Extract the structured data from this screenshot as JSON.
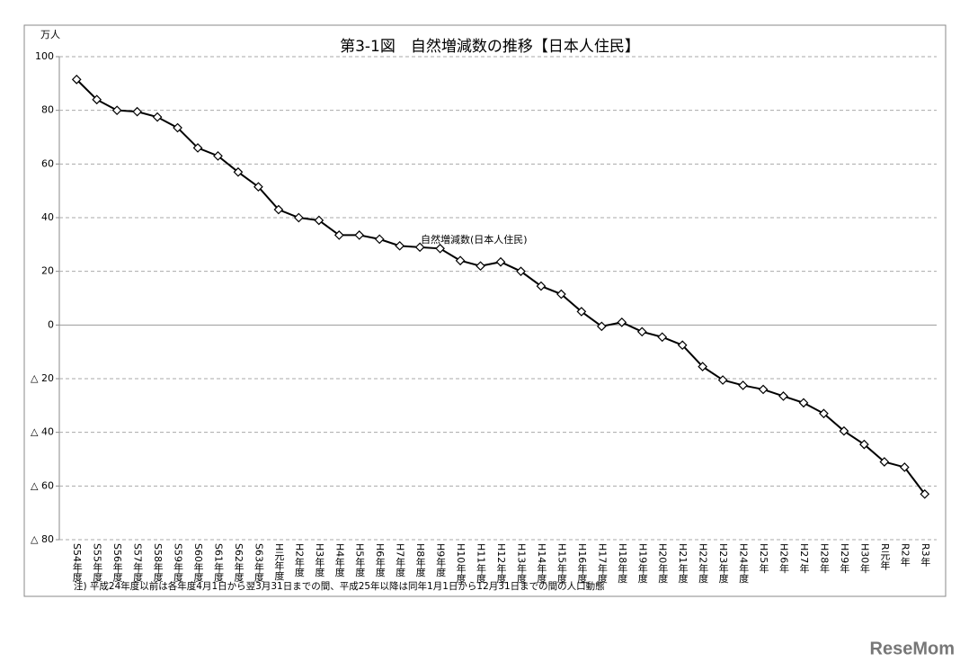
{
  "chart_data": {
    "type": "line",
    "title": "第3-1図　自然増減数の推移【日本人住民】",
    "y_unit": "万人",
    "note": "注) 平成24年度以前は各年度4月1日から翌3月31日までの間、平成25年以降は同年1月1日から12月31日までの間の人口動態",
    "watermark": "ReseMom",
    "categories": [
      "S54年度",
      "S55年度",
      "S56年度",
      "S57年度",
      "S58年度",
      "S59年度",
      "S60年度",
      "S61年度",
      "S62年度",
      "S63年度",
      "H元年度",
      "H2年度",
      "H3年度",
      "H4年度",
      "H5年度",
      "H6年度",
      "H7年度",
      "H8年度",
      "H9年度",
      "H10年度",
      "H11年度",
      "H12年度",
      "H13年度",
      "H14年度",
      "H15年度",
      "H16年度",
      "H17年度",
      "H18年度",
      "H19年度",
      "H20年度",
      "H21年度",
      "H22年度",
      "H23年度",
      "H24年度",
      "H25年",
      "H26年",
      "H27年",
      "H28年",
      "H29年",
      "H30年",
      "R元年",
      "R2年",
      "R3年"
    ],
    "series": [
      {
        "name": "自然増減数(日本人住民)",
        "color": "#000000",
        "values": [
          91.5,
          84,
          80,
          79.5,
          77.5,
          73.5,
          66,
          63,
          57,
          51.5,
          43,
          40,
          39,
          33.5,
          33.5,
          32,
          29.5,
          29,
          28.5,
          24,
          22,
          23.5,
          20,
          14.5,
          11.5,
          5,
          -0.5,
          1,
          -2.5,
          -4.5,
          -7.5,
          -15.5,
          -20.5,
          -22.5,
          -24,
          -26.5,
          -29,
          -33,
          -39.5,
          -44.5,
          -51,
          -53,
          -63
        ]
      }
    ],
    "ylim": [
      -80,
      100
    ],
    "yticks": [
      100,
      80,
      60,
      40,
      20,
      0,
      {
        "value": -20,
        "label": "△ 20"
      },
      {
        "value": -40,
        "label": "△ 40"
      },
      {
        "value": -60,
        "label": "△ 60"
      },
      {
        "value": -80,
        "label": "△ 80"
      }
    ],
    "grid": true
  }
}
